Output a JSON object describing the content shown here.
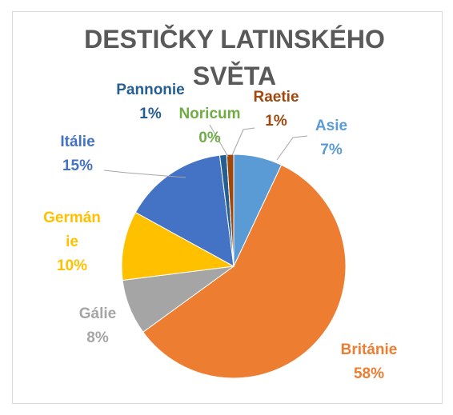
{
  "chart_data": {
    "type": "pie",
    "title": "DESTIČKY LATINSKÉHO SVĚTA",
    "categories": [
      "Asie",
      "Británie",
      "Gálie",
      "Germánie",
      "Itálie",
      "Pannonie",
      "Noricum",
      "Raetie"
    ],
    "values": [
      7,
      58,
      8,
      10,
      15,
      1,
      0,
      1
    ],
    "value_labels": [
      "7%",
      "58%",
      "8%",
      "10%",
      "15%",
      "1%",
      "0%",
      "1%"
    ],
    "colors": [
      "#5b9bd5",
      "#ed7d31",
      "#a5a5a5",
      "#ffc000",
      "#4472c4",
      "#255e91",
      "#70ad47",
      "#9e480e"
    ]
  }
}
